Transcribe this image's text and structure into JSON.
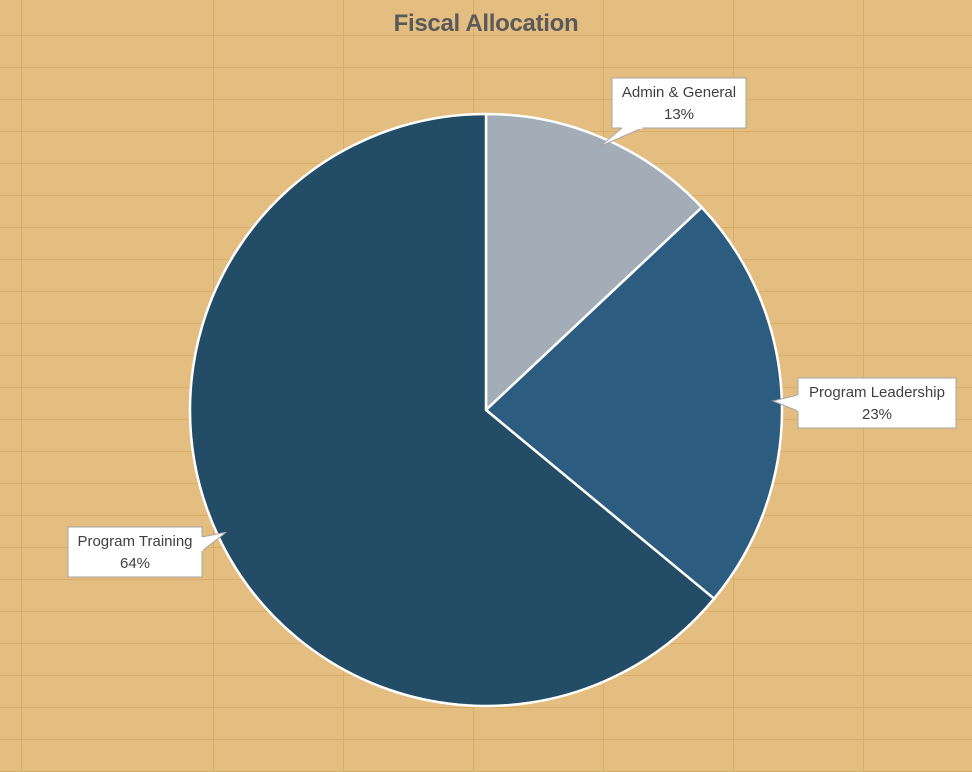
{
  "chart_data": {
    "type": "pie",
    "title": "Fiscal Allocation",
    "start_angle_deg": 0,
    "direction": "clockwise",
    "slices": [
      {
        "label": "Admin & General",
        "value": 13,
        "value_label": "13%",
        "color": "#a3adb8"
      },
      {
        "label": "Program Leadership",
        "value": 23,
        "value_label": "23%",
        "color": "#2c5d80"
      },
      {
        "label": "Program Training",
        "value": 64,
        "value_label": "64%",
        "color": "#234c67"
      }
    ]
  },
  "colors": {
    "background": "#e4be80",
    "gridline": "#d9ad68",
    "title": "#5a5a5a",
    "slice_border": "#ffffff",
    "callout_fill": "#ffffff",
    "callout_border": "#a6a6a6"
  }
}
